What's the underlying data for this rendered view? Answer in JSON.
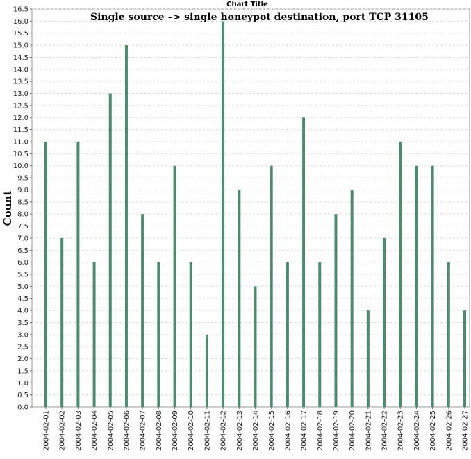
{
  "chart_data": {
    "type": "bar",
    "title": "Chart Title",
    "annotation": "Single source –> single honeypot destination, port TCP 31105",
    "xlabel": "",
    "ylabel": "Count",
    "ylim": [
      0,
      16.5
    ],
    "ytick_step": 0.5,
    "yticks": [
      "0.0",
      "0.5",
      "1.0",
      "1.5",
      "2.0",
      "2.5",
      "3.0",
      "3.5",
      "4.0",
      "4.5",
      "5.0",
      "5.5",
      "6.0",
      "6.5",
      "7.0",
      "7.5",
      "8.0",
      "8.5",
      "9.0",
      "9.5",
      "10.0",
      "10.5",
      "11.0",
      "11.5",
      "12.0",
      "12.5",
      "13.0",
      "13.5",
      "14.0",
      "14.5",
      "15.0",
      "15.5",
      "16.0",
      "16.5"
    ],
    "grid": true,
    "legend": "none",
    "bar_color": "#4e8a6e",
    "grid_color": "#d8d8d8",
    "categories": [
      "2004-02-01",
      "2004-02-02",
      "2004-02-03",
      "2004-02-04",
      "2004-02-05",
      "2004-02-06",
      "2004-02-07",
      "2004-02-08",
      "2004-02-09",
      "2004-02-10",
      "2004-02-11",
      "2004-02-12",
      "2004-02-13",
      "2004-02-14",
      "2004-02-15",
      "2004-02-16",
      "2004-02-17",
      "2004-02-18",
      "2004-02-19",
      "2004-02-20",
      "2004-02-21",
      "2004-02-22",
      "2004-02-23",
      "2004-02-24",
      "2004-02-25",
      "2004-02-26",
      "2004-02-27"
    ],
    "values": [
      11,
      7,
      11,
      6,
      13,
      15,
      8,
      6,
      10,
      6,
      3,
      16,
      9,
      5,
      10,
      6,
      12,
      6,
      8,
      9,
      4,
      7,
      11,
      10,
      10,
      6,
      4
    ]
  }
}
